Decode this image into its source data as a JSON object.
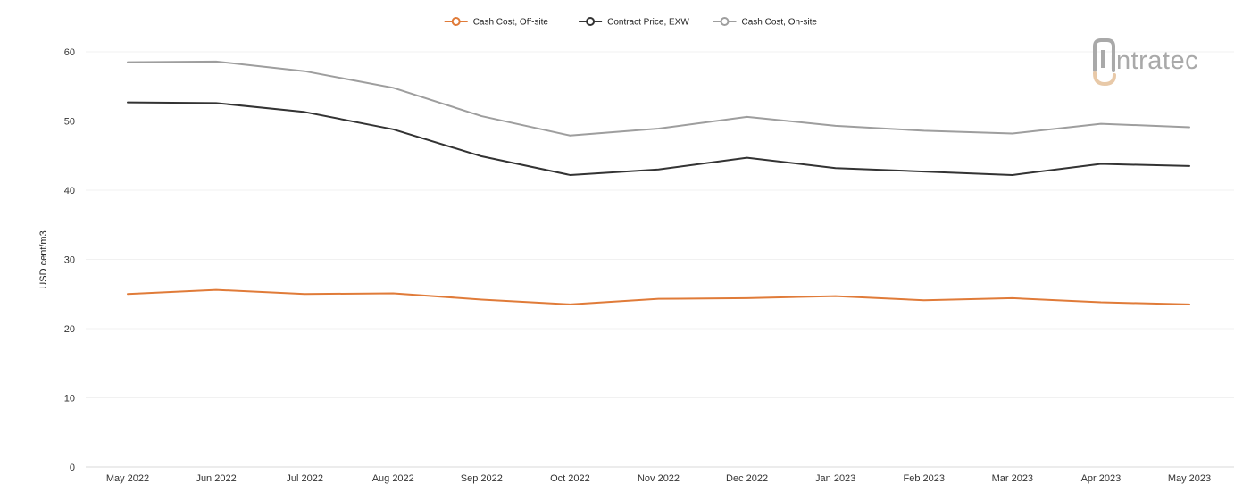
{
  "logo": {
    "text": "intratec"
  },
  "chart_data": {
    "type": "line",
    "title": "",
    "xlabel": "",
    "ylabel": "USD cent/m3",
    "ylim": [
      0,
      60
    ],
    "yticks": [
      0,
      10,
      20,
      30,
      40,
      50,
      60
    ],
    "grid": true,
    "legend_position": "top-center",
    "categories": [
      "May 2022",
      "Jun 2022",
      "Jul 2022",
      "Aug 2022",
      "Sep 2022",
      "Oct 2022",
      "Nov 2022",
      "Dec 2022",
      "Jan 2023",
      "Feb 2023",
      "Mar 2023",
      "Apr 2023",
      "May 2023"
    ],
    "series": [
      {
        "name": "Cash Cost, Off-site",
        "color": "#e07b39",
        "values": [
          25.0,
          25.6,
          25.0,
          25.1,
          24.2,
          23.5,
          24.3,
          24.4,
          24.7,
          24.1,
          24.4,
          23.8,
          23.5
        ]
      },
      {
        "name": "Contract Price, EXW",
        "color": "#333333",
        "values": [
          52.7,
          52.6,
          51.3,
          48.8,
          44.9,
          42.2,
          43.0,
          44.7,
          43.2,
          42.7,
          42.2,
          43.8,
          43.5
        ]
      },
      {
        "name": "Cash Cost, On-site",
        "color": "#9e9e9e",
        "values": [
          58.5,
          58.6,
          57.2,
          54.8,
          50.7,
          47.9,
          48.9,
          50.6,
          49.3,
          48.6,
          48.2,
          49.6,
          49.1
        ]
      }
    ]
  }
}
